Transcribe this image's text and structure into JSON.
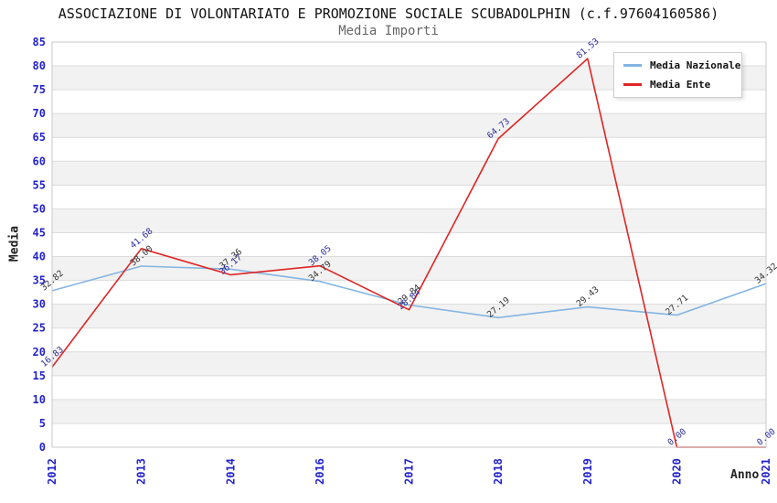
{
  "title": "ASSOCIAZIONE DI VOLONTARIATO E PROMOZIONE SOCIALE SCUBADOLPHIN (c.f.97604160586)",
  "subtitle": "Media Importi",
  "axes": {
    "y_label": "Media",
    "x_label": "Anno",
    "y_ticks": [
      0,
      5,
      10,
      15,
      20,
      25,
      30,
      35,
      40,
      45,
      50,
      55,
      60,
      65,
      70,
      75,
      80,
      85
    ]
  },
  "legend": {
    "position": "top-right",
    "items": [
      {
        "label": "Media Nazionale"
      },
      {
        "label": "Media Ente"
      }
    ]
  },
  "chart_data": {
    "type": "line",
    "title": "ASSOCIAZIONE DI VOLONTARIATO E PROMOZIONE SOCIALE SCUBADOLPHIN (c.f.97604160586)",
    "subtitle": "Media Importi",
    "xlabel": "Anno",
    "ylabel": "Media",
    "categories": [
      "2012",
      "2013",
      "2014",
      "2016",
      "2017",
      "2018",
      "2019",
      "2020",
      "2021"
    ],
    "series": [
      {
        "name": "Media Nazionale",
        "color": "#84b5e3",
        "label_color": "#333333",
        "values": [
          32.82,
          38.0,
          37.36,
          34.79,
          29.84,
          27.19,
          29.43,
          27.71,
          34.32
        ]
      },
      {
        "name": "Media Ente",
        "color": "#e02424",
        "label_color": "#2e2e9c",
        "values": [
          16.83,
          41.68,
          36.17,
          38.05,
          28.84,
          64.73,
          81.53,
          0.0,
          0.0
        ]
      }
    ],
    "ylim": [
      0,
      85
    ],
    "ytick_step": 5,
    "grid": true,
    "band_color": "#f2f2f2",
    "gridline_color": "#dcdcdc",
    "plot_border_color": "#c9c9c9",
    "tick_color": "#2222cc",
    "label_format": "2-decimals",
    "point_labels_rotated": true
  }
}
